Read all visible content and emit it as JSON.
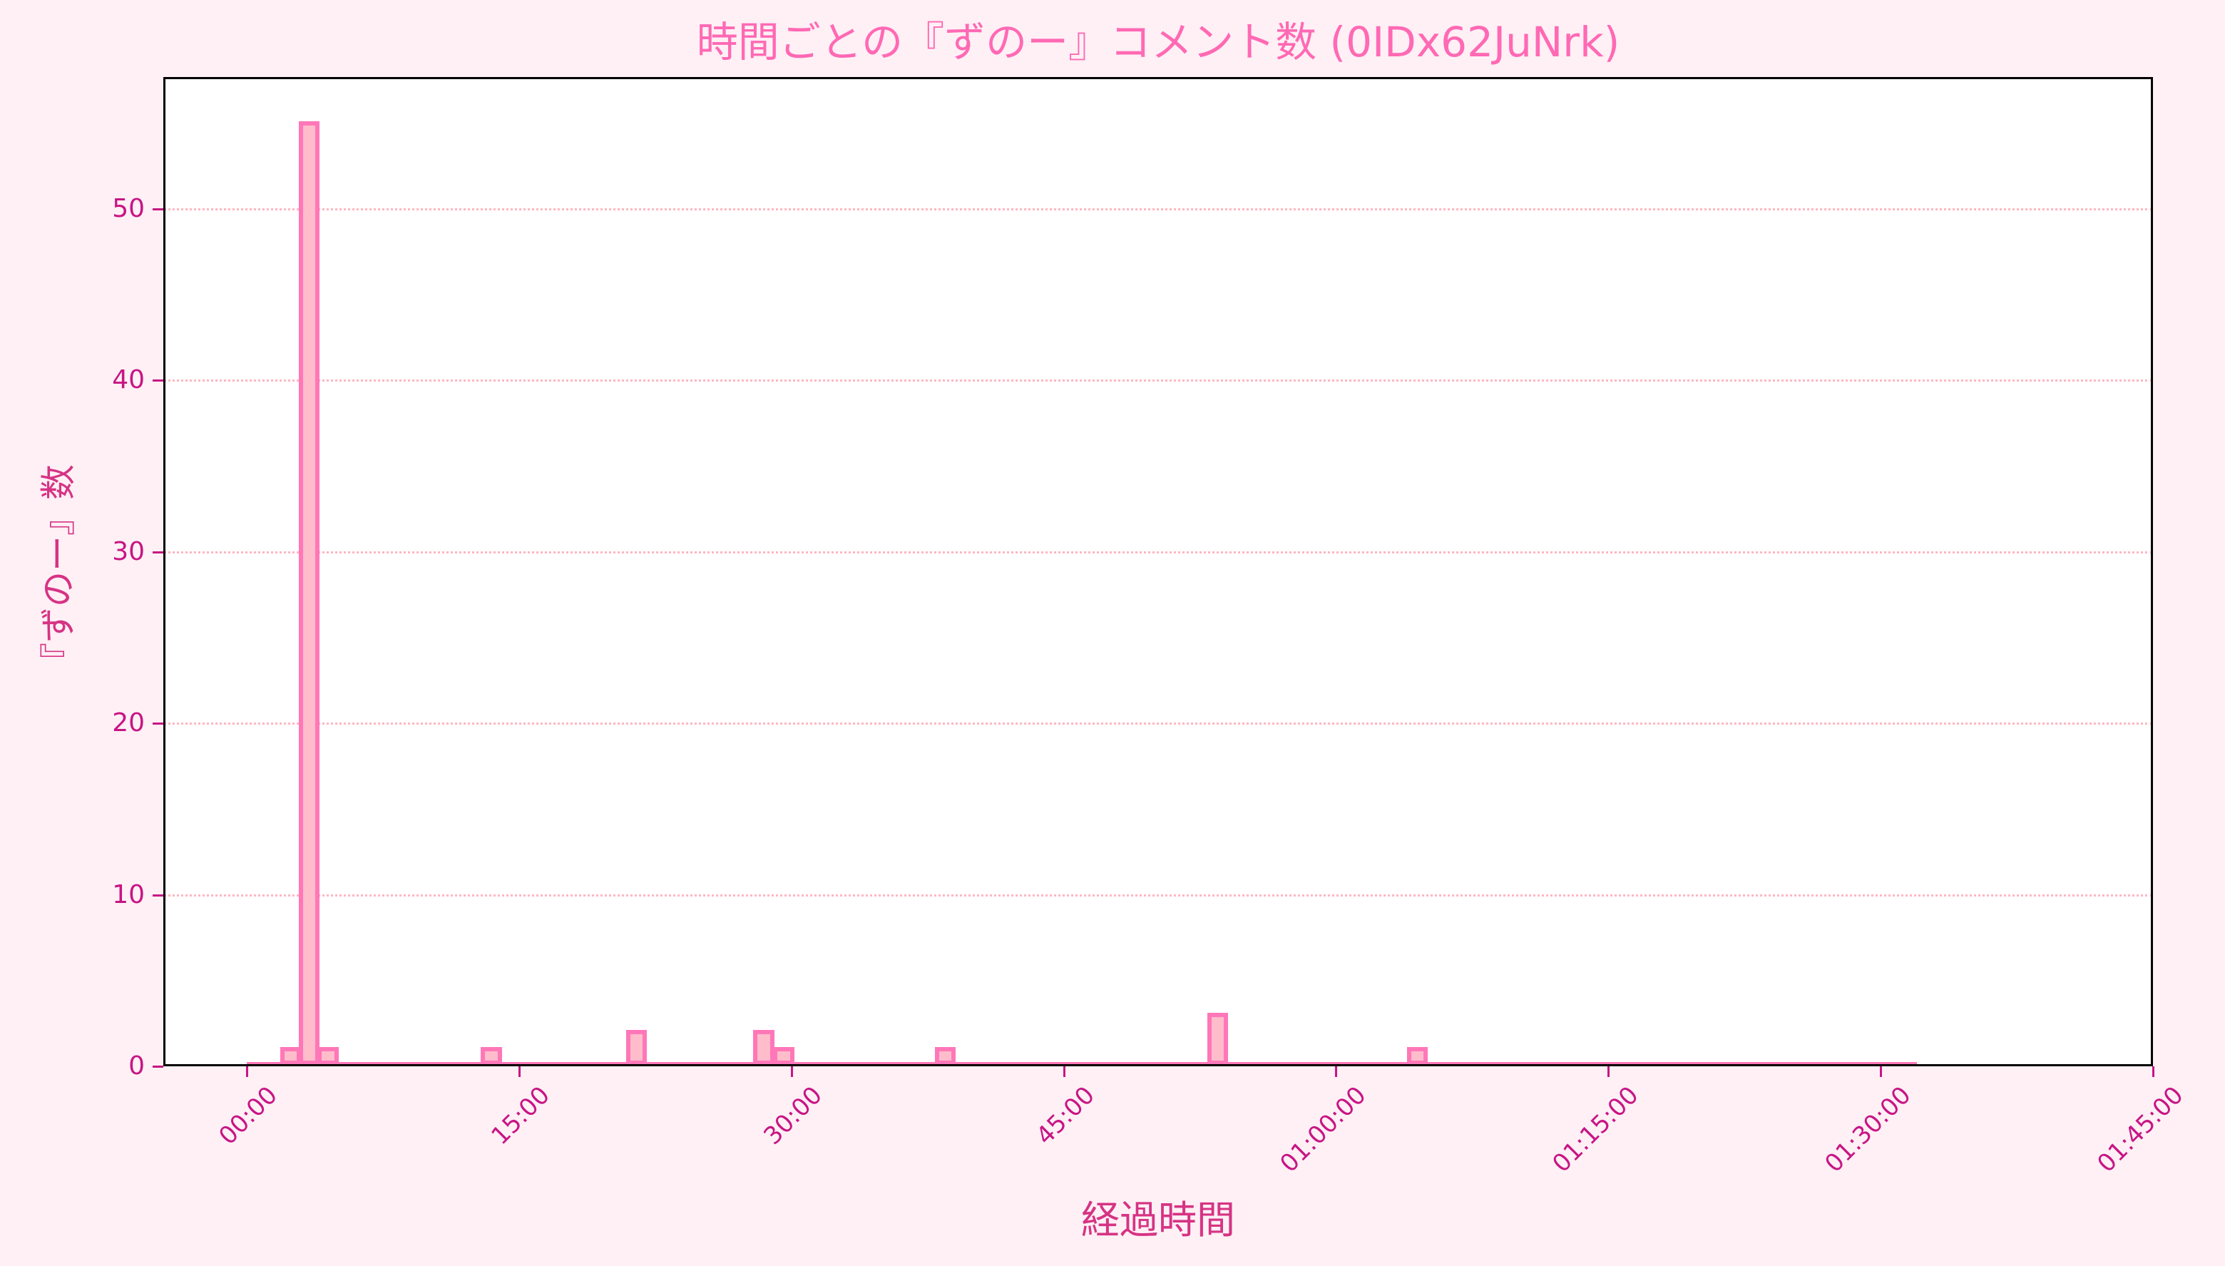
{
  "chart_data": {
    "type": "bar",
    "subtype": "histogram",
    "title": "時間ごとの『ずのー』コメント数 (0IDx62JuNrk)",
    "xlabel": "経過時間",
    "ylabel": "『ずのー』数",
    "x_unit": "minutes",
    "xlim_minutes": [
      -4.6,
      105
    ],
    "ylim": [
      0,
      57.7
    ],
    "yticks": [
      0,
      10,
      20,
      30,
      40,
      50
    ],
    "xticks": [
      {
        "minutes": 0,
        "label": "00:00"
      },
      {
        "minutes": 15,
        "label": "15:00"
      },
      {
        "minutes": 30,
        "label": "30:00"
      },
      {
        "minutes": 45,
        "label": "45:00"
      },
      {
        "minutes": 60,
        "label": "01:00:00"
      },
      {
        "minutes": 75,
        "label": "01:15:00"
      },
      {
        "minutes": 90,
        "label": "01:30:00"
      },
      {
        "minutes": 105,
        "label": "01:45:00"
      }
    ],
    "histogram_range_minutes": [
      0,
      92
    ],
    "bin_width_minutes": 1.15,
    "bins": [
      {
        "start": 1.85,
        "count": 1
      },
      {
        "start": 2.85,
        "count": 55
      },
      {
        "start": 3.9,
        "count": 1
      },
      {
        "start": 12.9,
        "count": 1
      },
      {
        "start": 20.9,
        "count": 2
      },
      {
        "start": 27.9,
        "count": 2
      },
      {
        "start": 29.0,
        "count": 1
      },
      {
        "start": 37.9,
        "count": 1
      },
      {
        "start": 52.9,
        "count": 3
      },
      {
        "start": 63.9,
        "count": 1
      }
    ],
    "grid": {
      "axis": "y",
      "style": "dotted",
      "color": "#ffb6c1"
    },
    "legend": null,
    "colors": {
      "background": "#fff0f5",
      "plot_background": "#ffffff",
      "bar_fill": "#ffbccb",
      "bar_edge": "#ff77b8",
      "title": "#ff69b4",
      "axis_label": "#d63384",
      "tick_label": "#c71585"
    }
  }
}
